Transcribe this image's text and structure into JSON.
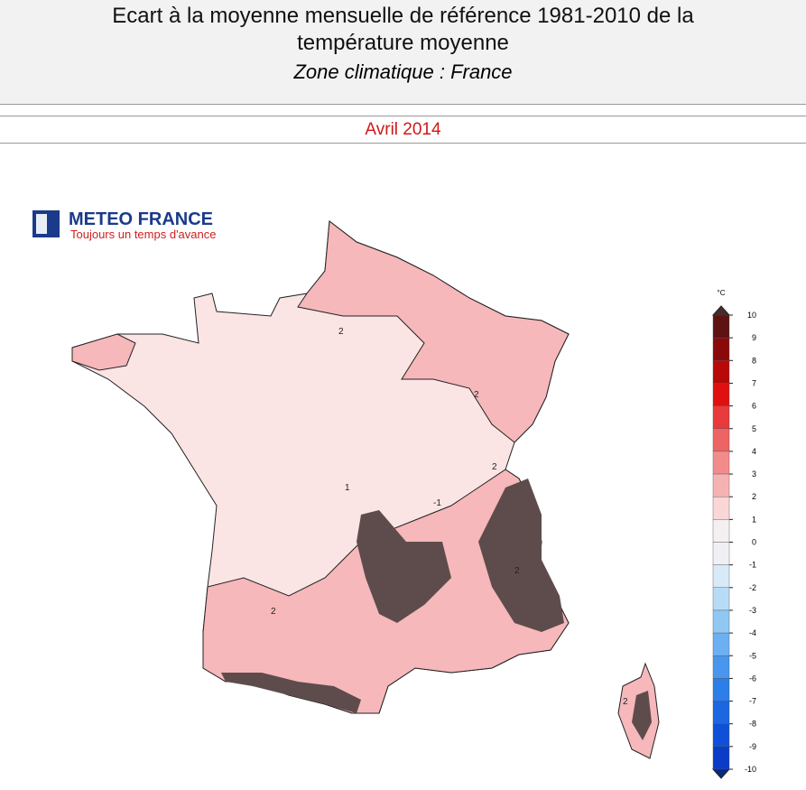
{
  "header": {
    "title_line1": "Ecart à la moyenne mensuelle de référence 1981-2010 de la",
    "title_line2": "température moyenne",
    "subtitle": "Zone climatique : France",
    "period": "Avril 2014"
  },
  "logo": {
    "name": "METEO FRANCE",
    "tagline": "Toujours un temps d'avance"
  },
  "map": {
    "contour_labels": [
      "2",
      "2",
      "2",
      "2",
      "2",
      "1",
      "-1",
      "2"
    ]
  },
  "legend": {
    "unit": "°C",
    "ticks": [
      10,
      9,
      8,
      7,
      6,
      5,
      4,
      3,
      2,
      1,
      0,
      -1,
      -2,
      -3,
      -4,
      -5,
      -6,
      -7,
      -8,
      -9,
      -10
    ],
    "colors": [
      "#5e1212",
      "#8a0a0a",
      "#b80808",
      "#e01010",
      "#e83a3a",
      "#ee6464",
      "#f28c8c",
      "#f6b2b2",
      "#fad6d6",
      "#f4f0f0",
      "#f0f0f4",
      "#d8eaf8",
      "#b8dcf6",
      "#90c8f4",
      "#6cb0f2",
      "#4896ee",
      "#2c7ee8",
      "#1c66e0",
      "#1050d8",
      "#0a3cc8"
    ],
    "above_color": "#4a2a2a",
    "below_color": "#0a2a80"
  }
}
